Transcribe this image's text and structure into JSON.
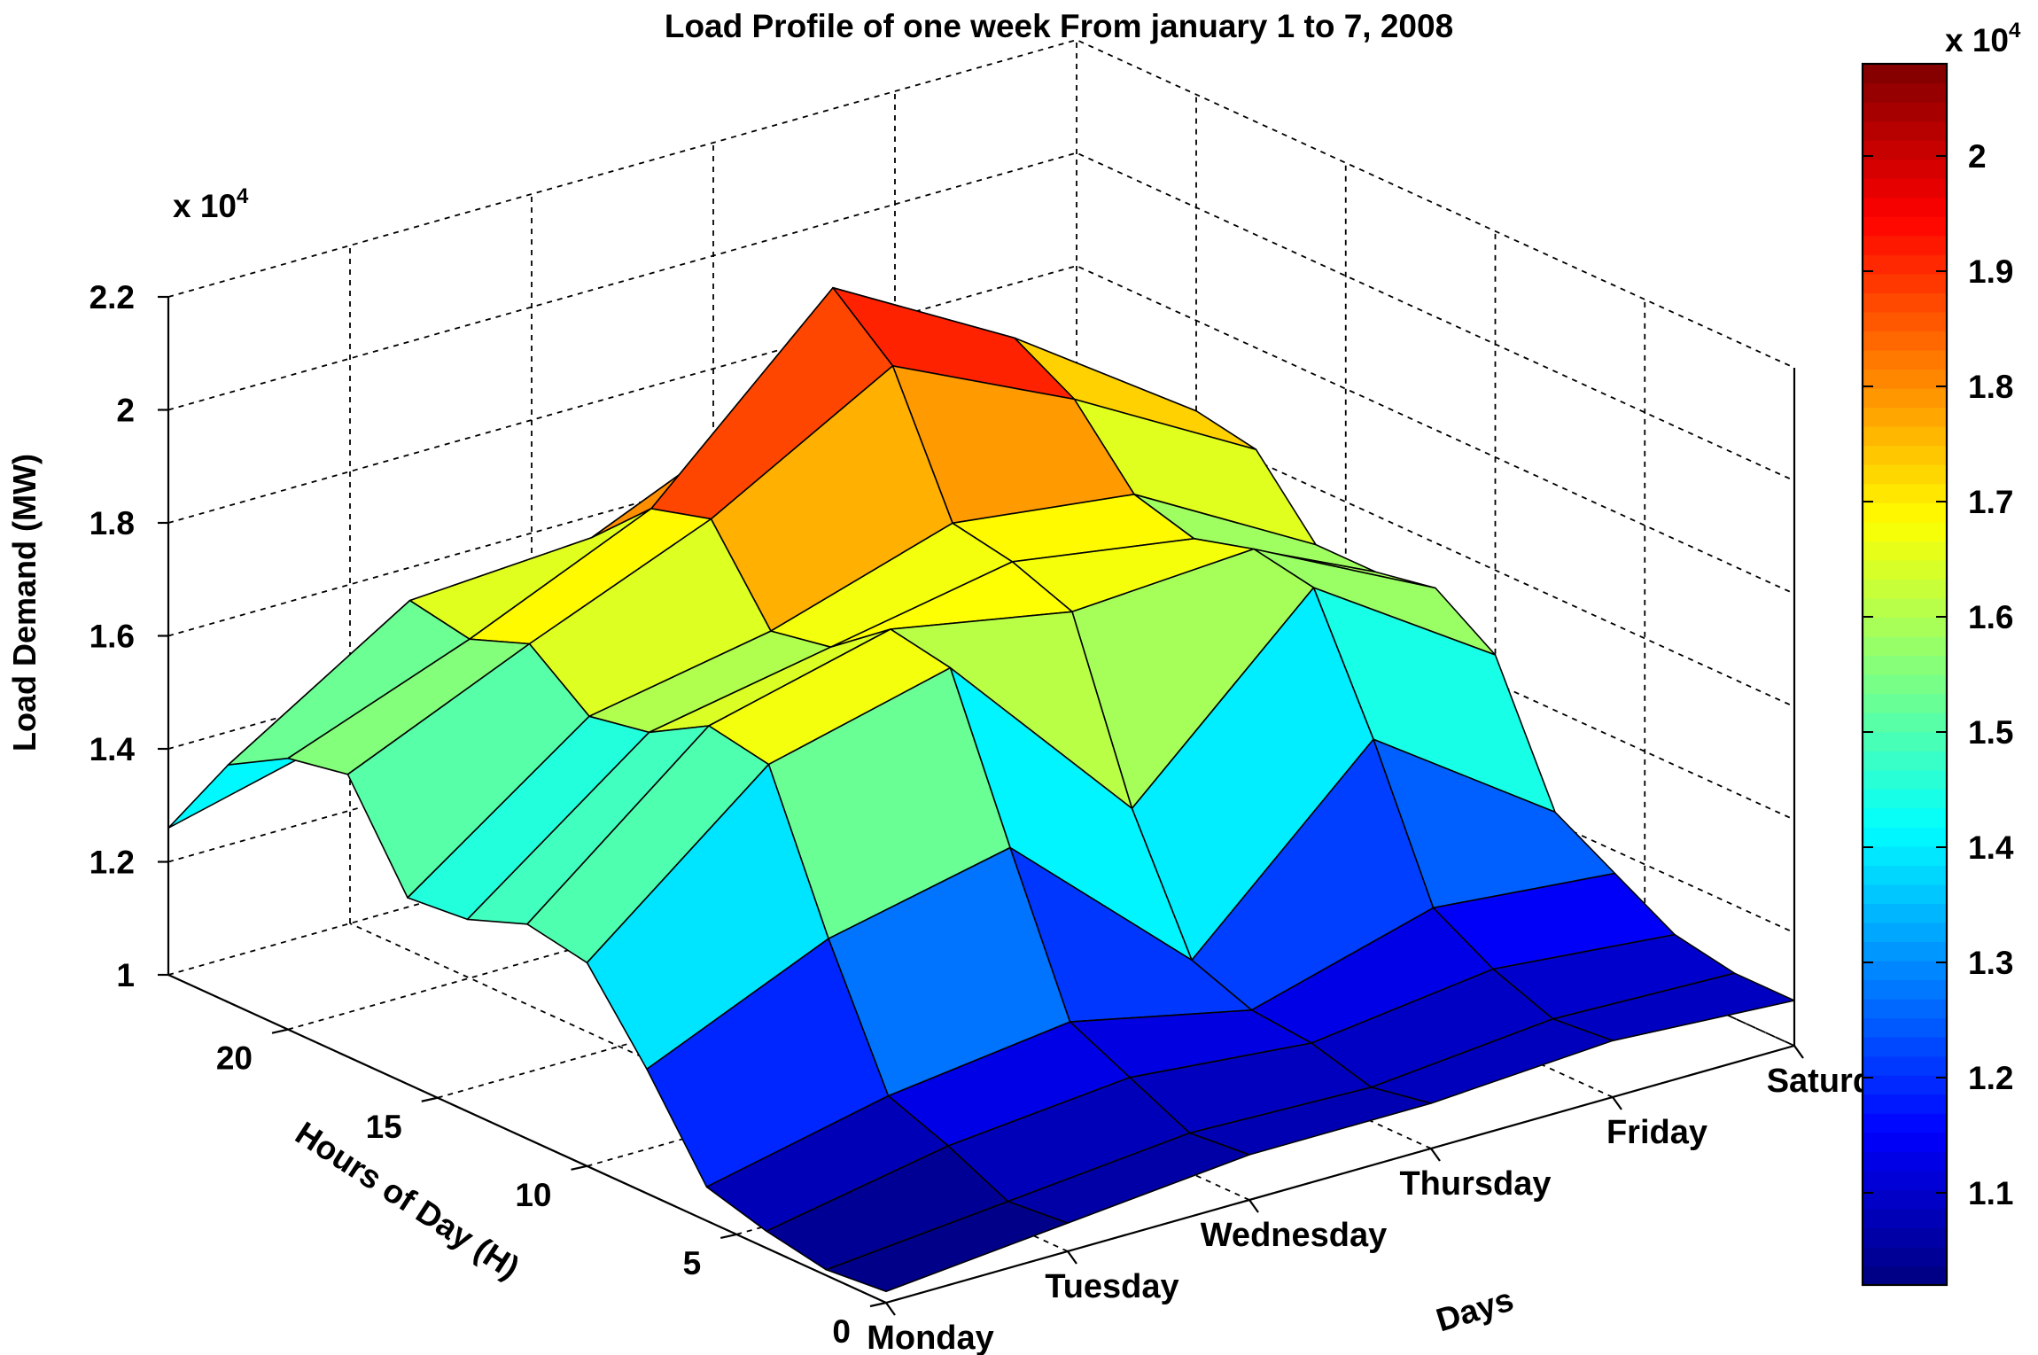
{
  "chart_data": {
    "type": "surface",
    "title": "Load Profile of one week From january 1 to 7, 2008",
    "xlabel": "Days",
    "ylabel": "Hours of Day (H)",
    "zlabel": "Load Demand (MW)",
    "z_exponent_label": "x 10^4",
    "colorbar_exponent_label": "x 10^4",
    "x_categories": [
      "Monday",
      "Tuesday",
      "Wednesday",
      "Thursday",
      "Friday",
      "Saturday"
    ],
    "y_ticks": [
      "0",
      "5",
      "10",
      "15",
      "20"
    ],
    "z_ticks": [
      "1",
      "1.2",
      "1.4",
      "1.6",
      "1.8",
      "2",
      "2.2"
    ],
    "colorbar_ticks": [
      "1.1",
      "1.2",
      "1.3",
      "1.4",
      "1.5",
      "1.6",
      "1.7",
      "1.8",
      "1.9",
      "2"
    ],
    "zlim": [
      1.0,
      2.2
    ],
    "color_limits": [
      1.02,
      2.08
    ],
    "hours": [
      0,
      2,
      4,
      6,
      8,
      10,
      12,
      14,
      16,
      18,
      20,
      22,
      24
    ],
    "z_values_x1e4": [
      [
        1.02,
        1.01,
        1.03,
        1.06,
        1.22,
        1.36,
        1.38,
        1.34,
        1.33,
        1.5,
        1.48,
        1.42,
        1.26
      ],
      [
        1.05,
        1.04,
        1.09,
        1.13,
        1.36,
        1.62,
        1.64,
        1.58,
        1.56,
        1.64,
        1.6,
        1.62,
        1.34
      ],
      [
        1.08,
        1.07,
        1.12,
        1.17,
        1.43,
        1.7,
        1.72,
        1.64,
        1.62,
        1.77,
        1.74,
        1.64,
        1.36
      ],
      [
        1.08,
        1.06,
        1.09,
        1.1,
        1.14,
        1.36,
        1.66,
        1.7,
        1.72,
        1.95,
        2.04,
        1.78,
        1.42
      ],
      [
        1.1,
        1.09,
        1.13,
        1.19,
        1.44,
        1.66,
        1.68,
        1.65,
        1.68,
        1.8,
        1.86,
        1.7,
        1.34
      ],
      [
        1.08,
        1.08,
        1.1,
        1.16,
        1.22,
        1.45,
        1.52,
        1.5,
        1.5,
        1.62,
        1.64,
        1.55,
        1.3
      ]
    ]
  }
}
